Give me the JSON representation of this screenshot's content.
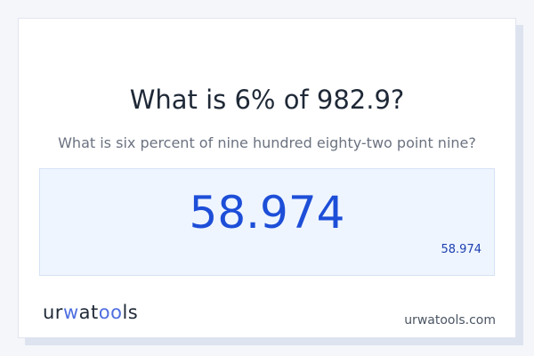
{
  "title": "What is 6% of 982.9?",
  "subtitle": "What is six percent of nine hundred eighty-two point nine?",
  "result": {
    "value": "58.974",
    "small_value": "58.974"
  },
  "footer": {
    "logo": "urwatools",
    "logo_parts": [
      "ur",
      "w",
      "at",
      "oo",
      "ls"
    ],
    "site": "urwatools.com"
  }
}
